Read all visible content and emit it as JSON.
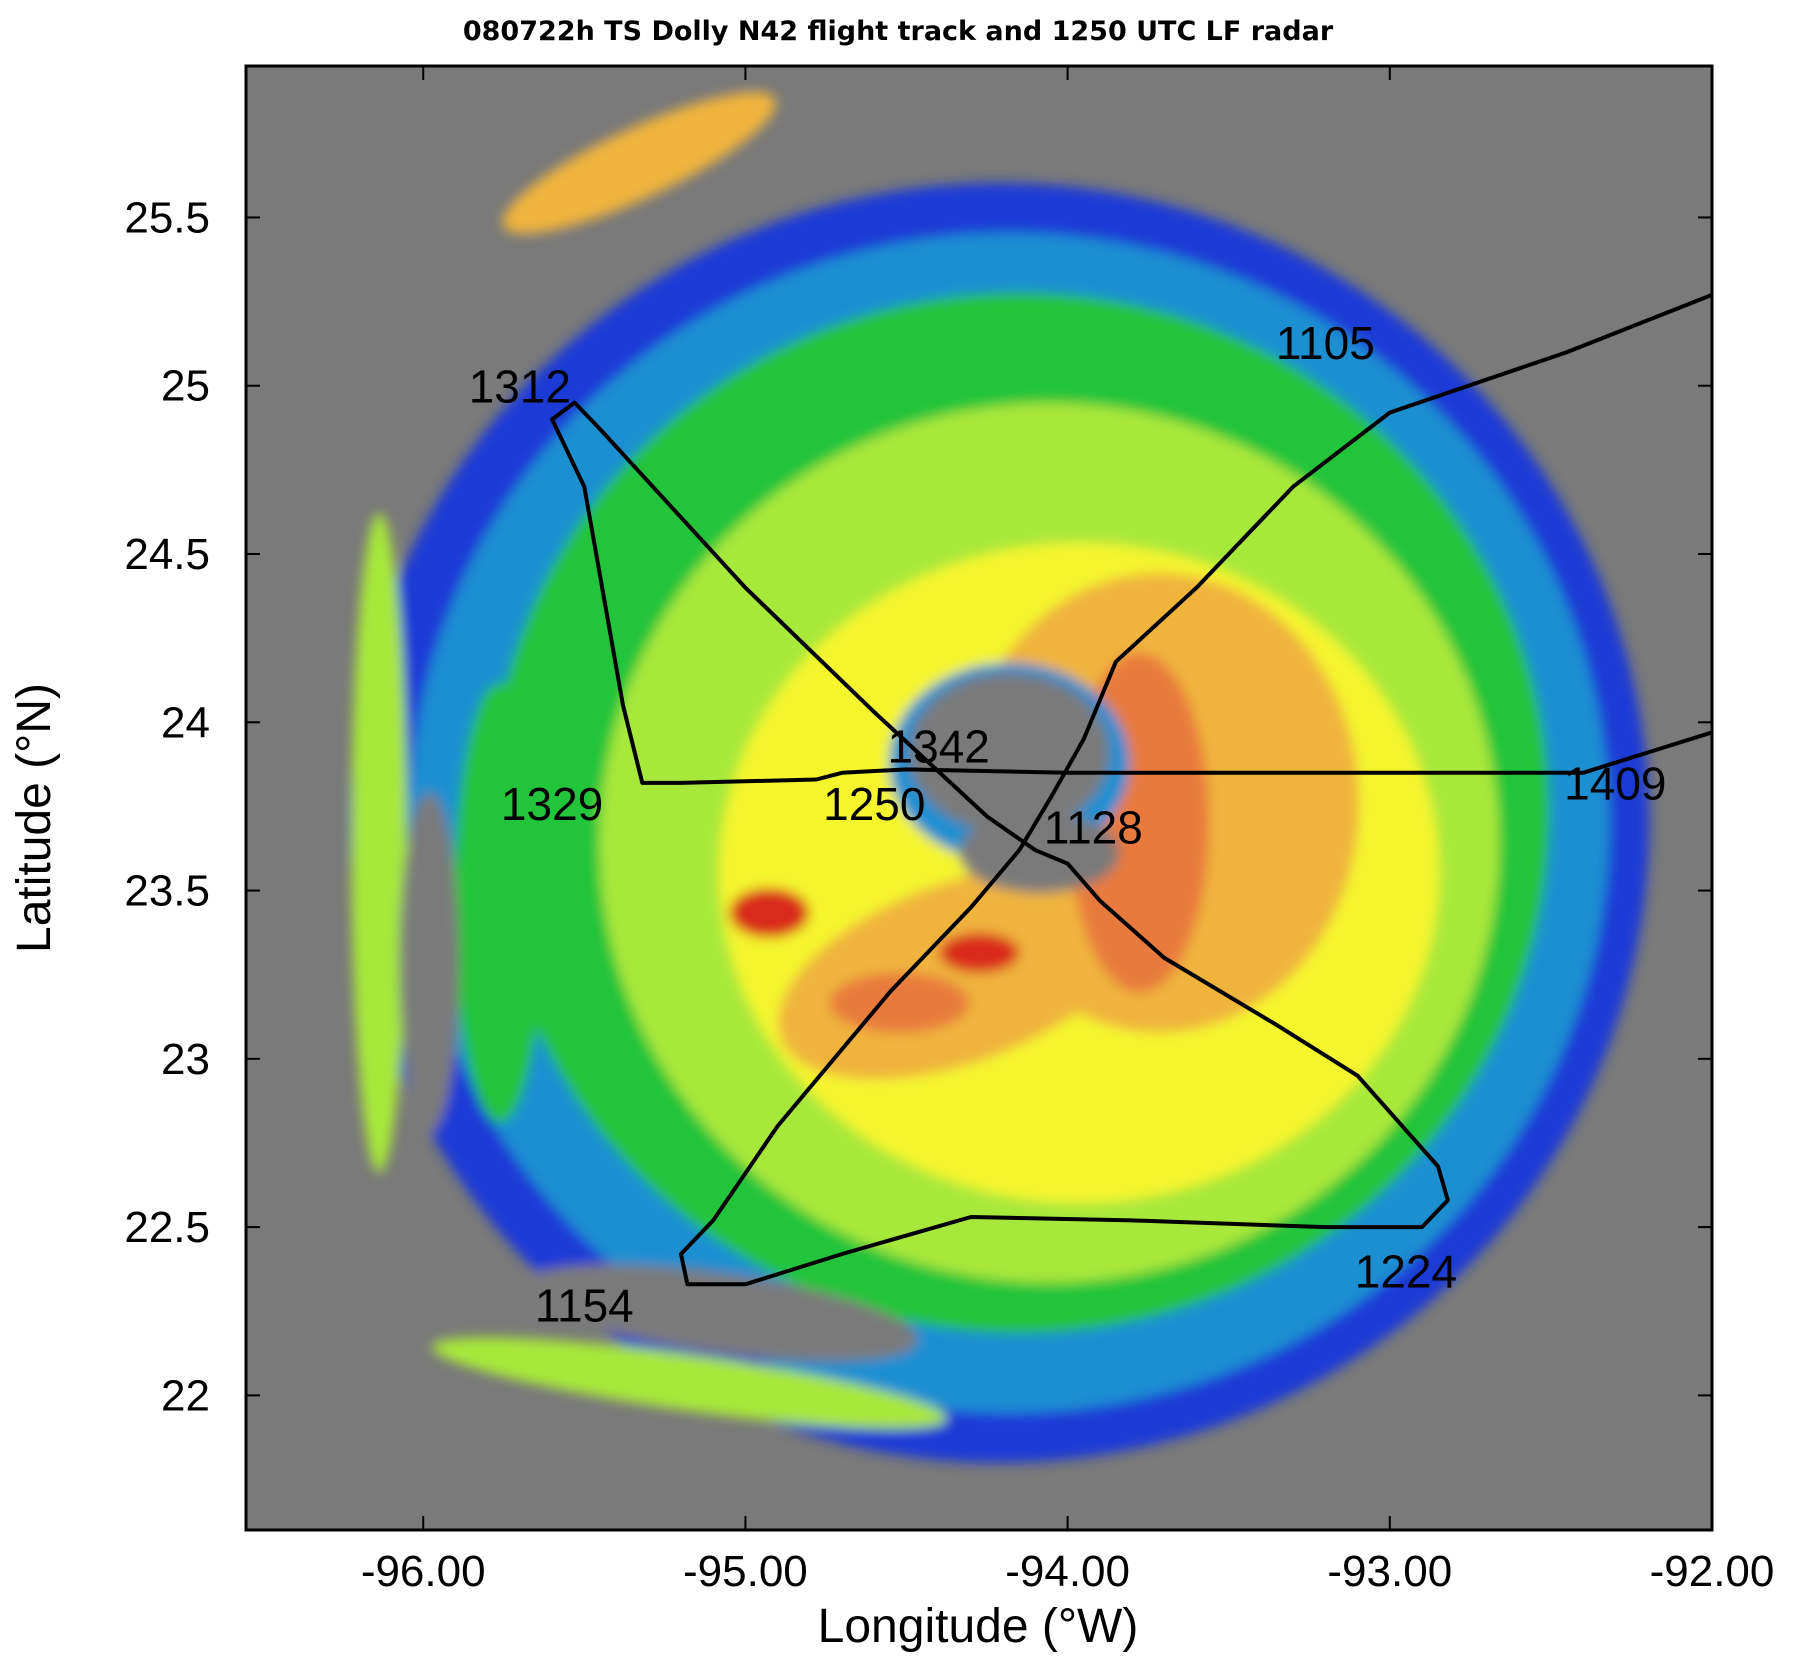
{
  "title": "080722h TS Dolly N42 flight track and 1250 UTC LF radar",
  "chart_data": {
    "type": "scatter",
    "subtype": "radar reflectivity map with flight track overlay",
    "xlabel": "Longitude (°W)",
    "ylabel": "Latitude (°N)",
    "xlim": [
      -96.55,
      -92.0
    ],
    "ylim": [
      21.6,
      25.95
    ],
    "x_ticks": [
      -96,
      -95,
      -94,
      -93,
      -92
    ],
    "x_tick_labels": [
      "-96.00",
      "-95.00",
      "-94.00",
      "-93.00",
      "-92.00"
    ],
    "y_ticks": [
      22,
      22.5,
      23,
      23.5,
      24,
      24.5,
      25,
      25.5
    ],
    "y_tick_labels": [
      "22",
      "22.5",
      "23",
      "23.5",
      "24",
      "24.5",
      "25",
      "25.5"
    ],
    "grid": false,
    "background_color": "#7a7a7a",
    "reflectivity_colors": [
      "#1f3bd6",
      "#1c8fd1",
      "#22c43a",
      "#a8e83a",
      "#f5f52e",
      "#f0b43c",
      "#e87a3c",
      "#d92a1e"
    ],
    "storm_center": [
      -94.15,
      23.82
    ],
    "flight_track": [
      [
        -92.0,
        25.27
      ],
      [
        -92.45,
        25.1
      ],
      [
        -93.0,
        24.92
      ],
      [
        -93.3,
        24.7
      ],
      [
        -93.6,
        24.4
      ],
      [
        -93.85,
        24.18
      ],
      [
        -93.95,
        23.95
      ],
      [
        -94.05,
        23.78
      ],
      [
        -94.15,
        23.62
      ],
      [
        -94.3,
        23.45
      ],
      [
        -94.55,
        23.2
      ],
      [
        -94.9,
        22.8
      ],
      [
        -95.1,
        22.52
      ],
      [
        -95.2,
        22.42
      ],
      [
        -95.18,
        22.33
      ],
      [
        -95.0,
        22.33
      ],
      [
        -94.7,
        22.42
      ],
      [
        -94.3,
        22.53
      ],
      [
        -93.8,
        22.52
      ],
      [
        -93.2,
        22.5
      ],
      [
        -92.9,
        22.5
      ],
      [
        -92.82,
        22.58
      ],
      [
        -92.85,
        22.68
      ],
      [
        -93.1,
        22.95
      ],
      [
        -93.35,
        23.1
      ],
      [
        -93.7,
        23.3
      ],
      [
        -93.9,
        23.47
      ],
      [
        -94.0,
        23.58
      ],
      [
        -94.1,
        23.62
      ],
      [
        -94.25,
        23.72
      ],
      [
        -94.6,
        24.03
      ],
      [
        -95.0,
        24.4
      ],
      [
        -95.45,
        24.87
      ],
      [
        -95.53,
        24.95
      ],
      [
        -95.6,
        24.9
      ],
      [
        -95.5,
        24.7
      ],
      [
        -95.38,
        24.05
      ],
      [
        -95.32,
        23.82
      ],
      [
        -95.2,
        23.82
      ],
      [
        -94.78,
        23.83
      ],
      [
        -94.7,
        23.85
      ],
      [
        -94.5,
        23.86
      ],
      [
        -94.0,
        23.85
      ],
      [
        -93.0,
        23.85
      ],
      [
        -92.4,
        23.85
      ],
      [
        -92.3,
        23.88
      ],
      [
        -92.0,
        23.97
      ]
    ],
    "annotations": [
      {
        "text": "1105",
        "x": -93.2,
        "y": 25.08
      },
      {
        "text": "1312",
        "x": -95.7,
        "y": 24.95
      },
      {
        "text": "1342",
        "x": -94.4,
        "y": 23.88
      },
      {
        "text": "1329",
        "x": -95.6,
        "y": 23.71
      },
      {
        "text": "1250",
        "x": -94.6,
        "y": 23.71
      },
      {
        "text": "1128",
        "x": -93.92,
        "y": 23.64
      },
      {
        "text": "1409",
        "x": -92.3,
        "y": 23.77
      },
      {
        "text": "1224",
        "x": -92.95,
        "y": 22.32
      },
      {
        "text": "1154",
        "x": -95.5,
        "y": 22.22
      }
    ]
  }
}
